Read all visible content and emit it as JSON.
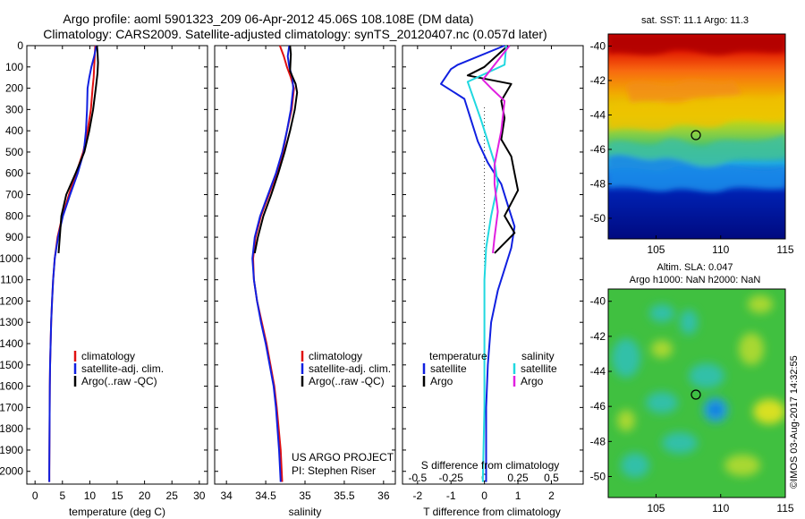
{
  "header": {
    "line1": "Argo profile: aoml 5901323_209 06-Apr-2012 45.06S 108.108E (DM data)",
    "line2": "Climatology: CARS2009. Satellite-adjusted climatology: synTS_20120407.nc (0.057d later)"
  },
  "colors": {
    "climatology": "#e01010",
    "satellite": "#1020e0",
    "argo": "#000000",
    "sal_satellite": "#20d8e0",
    "sal_argo": "#e020e0"
  },
  "panel_temperature": {
    "xlabel": "temperature (deg C)",
    "legend": [
      "climatology",
      "satellite-adj. clim.",
      "Argo(..raw -QC)"
    ]
  },
  "panel_salinity": {
    "xlabel": "salinity",
    "legend": [
      "climatology",
      "satellite-adj. clim.",
      "Argo(..raw -QC)"
    ],
    "project_line1": "US ARGO PROJECT",
    "project_line2": "PI: Stephen Riser"
  },
  "panel_diff": {
    "xlabel": "T difference from climatology",
    "top_label": "S difference from climatology",
    "legend_temp_title": "temperature",
    "legend_sal_title": "salinity",
    "legend_items": [
      "satellite",
      "Argo"
    ]
  },
  "map_sst": {
    "title": "sat. SST: 11.1  Argo: 11.3"
  },
  "map_sla": {
    "title1": "Altim. SLA: 0.047",
    "title2": "Argo h1000: NaN h2000: NaN"
  },
  "credit": "©IMOS 03-Aug-2017 14:32:55",
  "chart_data": [
    {
      "type": "line",
      "name": "temperature profile",
      "xlabel": "temperature (deg C)",
      "ylabel": "",
      "xlim": [
        -1.5,
        31.5
      ],
      "ylim": [
        2060,
        0
      ],
      "xticks": [
        0,
        5,
        10,
        15,
        20,
        25,
        30
      ],
      "yticks": [
        0,
        100,
        200,
        300,
        400,
        500,
        600,
        700,
        800,
        900,
        1000,
        1100,
        1200,
        1300,
        1400,
        1500,
        1600,
        1700,
        1800,
        1900,
        2000
      ],
      "legend": "lower-right",
      "series": [
        {
          "name": "climatology",
          "color": "#e01010",
          "x": [
            11.0,
            10.9,
            10.8,
            10.7,
            10.5,
            10.2,
            9.6,
            8.8,
            7.5,
            6.2,
            5.0,
            4.1,
            3.6,
            3.3,
            3.1,
            2.95,
            2.85,
            2.75,
            2.7,
            2.65,
            2.6,
            2.6
          ],
          "y": [
            0,
            50,
            100,
            150,
            200,
            300,
            400,
            500,
            600,
            700,
            800,
            900,
            1000,
            1100,
            1200,
            1300,
            1400,
            1500,
            1600,
            1800,
            2000,
            2050
          ]
        },
        {
          "name": "satellite-adj. clim.",
          "color": "#1020e0",
          "x": [
            11.2,
            10.8,
            10.3,
            9.9,
            9.6,
            9.5,
            9.3,
            8.9,
            7.8,
            6.4,
            5.1,
            4.2,
            3.6,
            3.3,
            3.1,
            2.95,
            2.85,
            2.75,
            2.7,
            2.65,
            2.6,
            2.6
          ],
          "y": [
            0,
            50,
            100,
            150,
            200,
            300,
            400,
            500,
            600,
            700,
            800,
            900,
            1000,
            1100,
            1200,
            1300,
            1400,
            1500,
            1600,
            1800,
            2000,
            2050
          ]
        },
        {
          "name": "Argo(..raw -QC)",
          "color": "#000000",
          "x": [
            11.3,
            11.4,
            11.5,
            11.4,
            11.1,
            10.6,
            9.9,
            9.0,
            7.4,
            5.7,
            4.8,
            4.3
          ],
          "y": [
            0,
            30,
            80,
            130,
            200,
            300,
            400,
            500,
            600,
            700,
            800,
            975
          ]
        }
      ]
    },
    {
      "type": "line",
      "name": "salinity profile",
      "xlabel": "salinity",
      "xlim": [
        33.85,
        36.15
      ],
      "ylim": [
        2060,
        0
      ],
      "xticks": [
        34,
        34.5,
        35,
        35.5,
        36
      ],
      "legend": "lower-right",
      "series": [
        {
          "name": "climatology",
          "color": "#e01010",
          "x": [
            34.68,
            34.73,
            34.77,
            34.82,
            34.86,
            34.83,
            34.77,
            34.72,
            34.64,
            34.54,
            34.44,
            34.37,
            34.34,
            34.35,
            34.39,
            34.45,
            34.51,
            34.56,
            34.61,
            34.64,
            34.69,
            34.71
          ],
          "y": [
            0,
            50,
            100,
            150,
            200,
            300,
            400,
            500,
            600,
            700,
            800,
            900,
            1000,
            1100,
            1200,
            1300,
            1400,
            1500,
            1600,
            1700,
            1900,
            2050
          ]
        },
        {
          "name": "satellite-adj. clim.",
          "color": "#1020e0",
          "x": [
            34.8,
            34.78,
            34.8,
            34.84,
            34.85,
            34.82,
            34.77,
            34.71,
            34.63,
            34.53,
            34.43,
            34.36,
            34.33,
            34.35,
            34.39,
            34.44,
            34.5,
            34.55,
            34.6,
            34.63,
            34.67,
            34.69
          ],
          "y": [
            0,
            50,
            100,
            150,
            200,
            300,
            400,
            500,
            600,
            700,
            800,
            900,
            1000,
            1100,
            1200,
            1300,
            1400,
            1500,
            1600,
            1700,
            1900,
            2050
          ]
        },
        {
          "name": "Argo(..raw -QC)",
          "color": "#000000",
          "x": [
            34.81,
            34.82,
            34.81,
            34.88,
            34.9,
            34.87,
            34.81,
            34.74,
            34.66,
            34.57,
            34.47,
            34.4,
            34.36
          ],
          "y": [
            0,
            40,
            120,
            180,
            220,
            300,
            400,
            500,
            600,
            700,
            800,
            900,
            975
          ]
        }
      ]
    },
    {
      "type": "line",
      "name": "difference from climatology",
      "xlabel": "T difference from climatology",
      "x2label": "S difference from climatology",
      "xlim": [
        -2.45,
        2.95
      ],
      "xticks": [
        -2,
        -1,
        0,
        1,
        2
      ],
      "x2ticks": [
        "-0.5",
        "-0.25",
        "0",
        "0.25",
        "0.5"
      ],
      "ylim": [
        2060,
        0
      ],
      "legend": "lower-center",
      "series": [
        {
          "name": "temperature satellite",
          "color": "#1020e0",
          "x": [
            0.6,
            -0.8,
            -1.0,
            -1.3,
            -0.6,
            -0.4,
            -0.2,
            0.1,
            0.5,
            0.7,
            0.9,
            0.8,
            0.6,
            0.4,
            0.2,
            0.1,
            0.05,
            0.05,
            0.05
          ],
          "y": [
            0,
            90,
            110,
            180,
            250,
            350,
            450,
            550,
            650,
            750,
            850,
            950,
            1050,
            1150,
            1300,
            1500,
            1700,
            1900,
            2050
          ]
        },
        {
          "name": "temperature Argo",
          "color": "#000000",
          "x": [
            0.7,
            0.0,
            -0.5,
            0.8,
            0.5,
            0.6,
            0.5,
            0.8,
            0.9,
            1.0,
            0.6,
            0.9,
            0.3
          ],
          "y": [
            0,
            100,
            140,
            180,
            260,
            340,
            440,
            520,
            600,
            680,
            800,
            880,
            975
          ]
        },
        {
          "name": "salinity satellite",
          "color": "#20d8e0",
          "x": [
            0.65,
            0.6,
            -0.5,
            -0.3,
            -0.1,
            0.1,
            0.3,
            0.4,
            0.2,
            0.05,
            0.0,
            0.0,
            0.0,
            -0.05
          ],
          "y": [
            0,
            90,
            170,
            260,
            350,
            450,
            550,
            650,
            800,
            950,
            1100,
            1400,
            1700,
            2050
          ]
        },
        {
          "name": "salinity Argo",
          "color": "#e020e0",
          "x": [
            0.75,
            -0.05,
            0.2,
            0.6,
            0.5,
            0.3,
            0.3,
            0.4,
            0.3,
            0.25
          ],
          "y": [
            0,
            160,
            200,
            260,
            400,
            560,
            650,
            780,
            900,
            975
          ]
        }
      ]
    }
  ]
}
